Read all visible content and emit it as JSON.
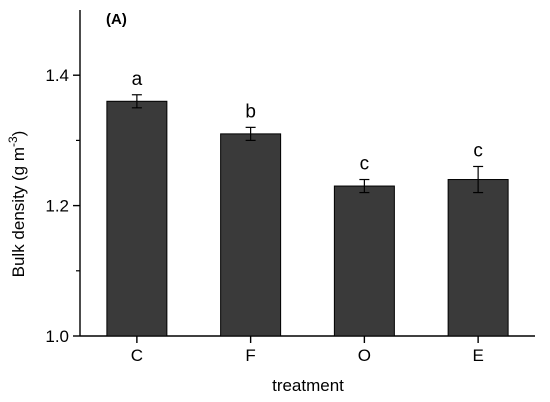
{
  "chart_data": {
    "type": "bar",
    "panel_label": "(A)",
    "categories": [
      "C",
      "F",
      "O",
      "E"
    ],
    "values": [
      1.36,
      1.31,
      1.23,
      1.24
    ],
    "errors": [
      0.01,
      0.01,
      0.01,
      0.02
    ],
    "significance_letters": [
      "a",
      "b",
      "c",
      "c"
    ],
    "xlabel": "treatment",
    "ylabel_text": "Bulk density (g m",
    "ylabel_sup": "-3",
    "ylabel_close": ")",
    "ylim": [
      1.0,
      1.5
    ],
    "yticks": [
      1.0,
      1.2,
      1.4
    ],
    "ytick_labels": [
      "1.0",
      "1.2",
      "1.4"
    ],
    "bar_color": "#3a3a3a",
    "grid": false
  }
}
